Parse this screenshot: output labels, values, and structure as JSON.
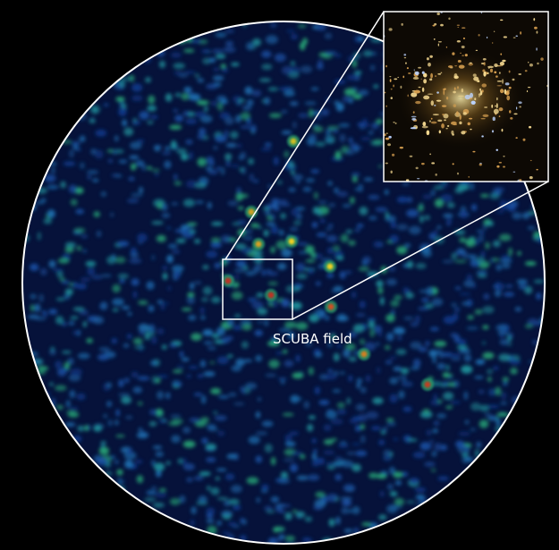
{
  "label": "SCUBA field"
}
